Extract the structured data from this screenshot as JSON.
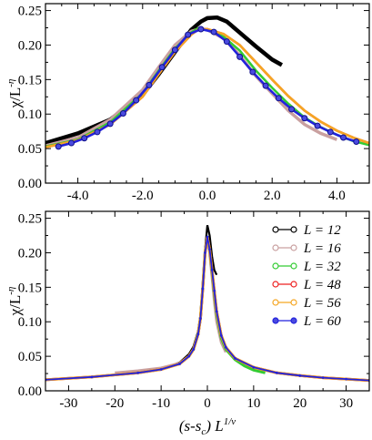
{
  "chart_data": [
    {
      "type": "line",
      "xlabel": "",
      "ylabel": "χ/L^(-η)",
      "xlim": [
        -5,
        5
      ],
      "ylim": [
        0,
        0.26
      ],
      "xticks": [
        -4,
        -2,
        0,
        2,
        4
      ],
      "xtick_labels": [
        "-4.0",
        "-2.0",
        "0.0",
        "2.0",
        "4.0"
      ],
      "yticks": [
        0,
        0.05,
        0.1,
        0.15,
        0.2,
        0.25
      ],
      "ytick_labels": [
        "0.00",
        "0.05",
        "0.10",
        "0.15",
        "0.20",
        "0.25"
      ],
      "series": [
        {
          "name": "L = 12",
          "color": "#000000",
          "x": [
            -5,
            -4,
            -3,
            -2,
            -1.5,
            -1,
            -0.5,
            -0.2,
            0,
            0.3,
            0.6,
            1,
            1.5,
            2,
            2.3
          ],
          "y": [
            0.058,
            0.072,
            0.092,
            0.128,
            0.158,
            0.19,
            0.222,
            0.234,
            0.239,
            0.24,
            0.234,
            0.218,
            0.198,
            0.179,
            0.171
          ]
        },
        {
          "name": "L = 16",
          "color": "#c9a0a0",
          "x": [
            -5,
            -4,
            -3,
            -2,
            -1.5,
            -1,
            -0.5,
            -0.2,
            0,
            0.5,
            1,
            1.5,
            2,
            2.5,
            3,
            3.5,
            4
          ],
          "y": [
            0.054,
            0.066,
            0.092,
            0.135,
            0.168,
            0.2,
            0.22,
            0.224,
            0.222,
            0.21,
            0.185,
            0.155,
            0.13,
            0.105,
            0.085,
            0.072,
            0.063
          ]
        },
        {
          "name": "L = 32",
          "color": "#33cc33",
          "x": [
            -5,
            -4,
            -3,
            -2,
            -1.5,
            -1,
            -0.5,
            -0.3,
            0,
            0.5,
            1,
            1.5,
            2,
            2.5,
            3,
            3.5,
            4,
            4.5,
            5
          ],
          "y": [
            0.053,
            0.063,
            0.088,
            0.13,
            0.163,
            0.195,
            0.218,
            0.224,
            0.222,
            0.212,
            0.192,
            0.163,
            0.138,
            0.115,
            0.095,
            0.081,
            0.07,
            0.061,
            0.055
          ]
        },
        {
          "name": "L = 48",
          "color": "#ee2222",
          "x": [
            -5,
            -4,
            -3,
            -2,
            -1.5,
            -1,
            -0.5,
            -0.3,
            0,
            0.5,
            1,
            1.5,
            2,
            2.5,
            3,
            3.5,
            4,
            4.5,
            5
          ],
          "y": [
            0.052,
            0.062,
            0.085,
            0.125,
            0.158,
            0.19,
            0.215,
            0.222,
            0.223,
            0.216,
            0.2,
            0.175,
            0.15,
            0.126,
            0.105,
            0.089,
            0.076,
            0.066,
            0.058
          ]
        },
        {
          "name": "L = 56",
          "color": "#f5a623",
          "x": [
            -5,
            -4,
            -3,
            -2,
            -1.5,
            -1,
            -0.5,
            -0.3,
            0,
            0.5,
            1,
            1.5,
            2,
            2.5,
            3,
            3.5,
            4,
            4.5,
            5
          ],
          "y": [
            0.052,
            0.062,
            0.085,
            0.125,
            0.158,
            0.19,
            0.215,
            0.222,
            0.223,
            0.216,
            0.2,
            0.175,
            0.15,
            0.126,
            0.105,
            0.089,
            0.076,
            0.066,
            0.058
          ]
        },
        {
          "name": "L = 60",
          "color": "#2222dd",
          "x": [
            -4.6,
            -4.2,
            -3.8,
            -3.4,
            -3.0,
            -2.6,
            -2.2,
            -1.8,
            -1.4,
            -1.0,
            -0.6,
            -0.2,
            0.2,
            0.6,
            1.0,
            1.4,
            1.8,
            2.2,
            2.6,
            3.0,
            3.4,
            3.8,
            4.2,
            4.6
          ],
          "y": [
            0.053,
            0.058,
            0.065,
            0.074,
            0.086,
            0.101,
            0.12,
            0.142,
            0.168,
            0.193,
            0.215,
            0.223,
            0.219,
            0.205,
            0.183,
            0.161,
            0.141,
            0.123,
            0.107,
            0.094,
            0.083,
            0.074,
            0.066,
            0.06
          ]
        }
      ]
    },
    {
      "type": "line",
      "xlabel": "(s-s_c) L^(1/ν)",
      "ylabel": "χ/L^(-η)",
      "xlim": [
        -35,
        35
      ],
      "ylim": [
        0,
        0.26
      ],
      "xticks": [
        -30,
        -20,
        -10,
        0,
        10,
        20,
        30
      ],
      "xtick_labels": [
        "-30",
        "-20",
        "-10",
        "0",
        "10",
        "20",
        "30"
      ],
      "yticks": [
        0,
        0.05,
        0.1,
        0.15,
        0.2,
        0.25
      ],
      "ytick_labels": [
        "0.00",
        "0.05",
        "0.10",
        "0.15",
        "0.20",
        "0.25"
      ],
      "legend": "top-right",
      "series": [
        {
          "name": "L = 12",
          "color": "#000000",
          "x": [
            -11,
            -8,
            -6,
            -4,
            -3,
            -2,
            -1.5,
            -1,
            -0.5,
            0,
            0.5,
            1,
            1.5,
            2
          ],
          "y": [
            0.03,
            0.036,
            0.041,
            0.053,
            0.064,
            0.086,
            0.11,
            0.15,
            0.205,
            0.24,
            0.225,
            0.195,
            0.175,
            0.168
          ]
        },
        {
          "name": "L = 16",
          "color": "#c9a0a0",
          "x": [
            -20,
            -15,
            -10,
            -6,
            -4,
            -3,
            -2,
            -1.5,
            -1,
            -0.5,
            0,
            0.5,
            1,
            1.5,
            2,
            3,
            4
          ],
          "y": [
            0.026,
            0.029,
            0.033,
            0.04,
            0.05,
            0.06,
            0.082,
            0.105,
            0.148,
            0.2,
            0.22,
            0.2,
            0.165,
            0.13,
            0.1,
            0.07,
            0.056
          ]
        },
        {
          "name": "L = 32",
          "color": "#33cc33",
          "x": [
            -4,
            -3,
            -2,
            -1.5,
            -1,
            -0.5,
            0,
            0.5,
            1,
            1.5,
            2,
            3,
            4,
            6,
            8,
            10,
            12.5
          ],
          "y": [
            0.05,
            0.06,
            0.083,
            0.106,
            0.15,
            0.202,
            0.222,
            0.204,
            0.172,
            0.14,
            0.11,
            0.076,
            0.06,
            0.045,
            0.036,
            0.03,
            0.026
          ]
        },
        {
          "name": "L = 48",
          "color": "#ee2222",
          "x": [
            -35,
            -25,
            -15,
            -10,
            -6,
            -4,
            -3,
            -2,
            -1.5,
            -1,
            -0.5,
            0,
            0.5,
            1,
            1.5,
            2,
            3,
            4,
            6,
            10,
            15,
            20,
            25,
            30,
            35
          ],
          "y": [
            0.016,
            0.02,
            0.026,
            0.031,
            0.039,
            0.05,
            0.06,
            0.082,
            0.105,
            0.148,
            0.2,
            0.223,
            0.205,
            0.175,
            0.145,
            0.115,
            0.08,
            0.063,
            0.047,
            0.034,
            0.026,
            0.022,
            0.019,
            0.017,
            0.015
          ]
        },
        {
          "name": "L = 56",
          "color": "#f5a623",
          "x": [
            -35,
            -25,
            -15,
            -10,
            -6,
            -4,
            -3,
            -2,
            -1.5,
            -1,
            -0.5,
            0,
            0.5,
            1,
            1.5,
            2,
            3,
            4,
            6,
            10,
            15,
            20,
            25,
            30,
            35
          ],
          "y": [
            0.016,
            0.02,
            0.026,
            0.031,
            0.039,
            0.05,
            0.06,
            0.082,
            0.105,
            0.148,
            0.2,
            0.223,
            0.205,
            0.175,
            0.145,
            0.115,
            0.08,
            0.063,
            0.047,
            0.034,
            0.026,
            0.022,
            0.019,
            0.017,
            0.015
          ]
        },
        {
          "name": "L = 60",
          "color": "#2222dd",
          "x": [
            -35,
            -25,
            -15,
            -10,
            -6,
            -4,
            -3,
            -2,
            -1.5,
            -1,
            -0.5,
            0,
            0.5,
            1,
            1.5,
            2,
            3,
            4,
            6,
            10,
            15,
            20,
            25,
            30,
            35
          ],
          "y": [
            0.016,
            0.02,
            0.026,
            0.031,
            0.039,
            0.05,
            0.06,
            0.082,
            0.105,
            0.148,
            0.2,
            0.223,
            0.205,
            0.175,
            0.145,
            0.115,
            0.08,
            0.063,
            0.047,
            0.034,
            0.026,
            0.022,
            0.019,
            0.017,
            0.015
          ]
        }
      ]
    }
  ]
}
